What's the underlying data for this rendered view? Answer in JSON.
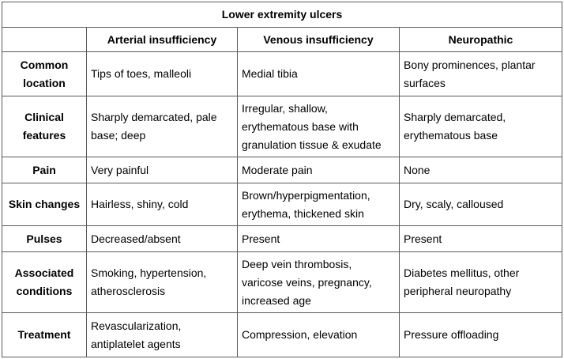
{
  "table": {
    "title": "Lower extremity ulcers",
    "columns": [
      "",
      "Arterial insufficiency",
      "Venous insufficiency",
      "Neuropathic"
    ],
    "rows": [
      {
        "label": "Common location",
        "cells": [
          "Tips of toes, malleoli",
          "Medial tibia",
          "Bony prominences, plantar surfaces"
        ]
      },
      {
        "label": "Clinical features",
        "cells": [
          "Sharply demarcated, pale base; deep",
          "Irregular, shallow, erythematous base with granulation tissue & exudate",
          "Sharply demarcated, erythematous base"
        ]
      },
      {
        "label": "Pain",
        "cells": [
          "Very painful",
          "Moderate pain",
          "None"
        ]
      },
      {
        "label": "Skin changes",
        "cells": [
          "Hairless, shiny, cold",
          "Brown/hyperpigmentation, erythema, thickened skin",
          "Dry, scaly, calloused"
        ]
      },
      {
        "label": "Pulses",
        "cells": [
          "Decreased/absent",
          "Present",
          "Present"
        ]
      },
      {
        "label": "Associated conditions",
        "cells": [
          "Smoking, hypertension, atherosclerosis",
          "Deep vein thrombosis, varicose veins, pregnancy, increased age",
          "Diabetes mellitus, other peripheral neuropathy"
        ]
      },
      {
        "label": "Treatment",
        "cells": [
          "Revascularization, antiplatelet agents",
          "Compression, elevation",
          "Pressure offloading"
        ]
      }
    ]
  }
}
